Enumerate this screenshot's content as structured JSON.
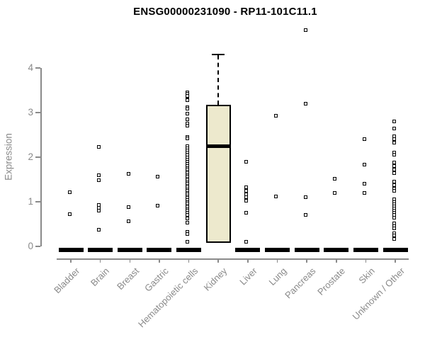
{
  "title": "ENSG00000231090 - RP11-101C11.1",
  "colors": {
    "box_fill": "#ede9cd",
    "axis": "#8a8a8a",
    "point": "#000000",
    "title_text": "#000000"
  },
  "chart_data": {
    "type": "boxplot",
    "title": "ENSG00000231090 - RP11-101C11.1",
    "xlabel": "",
    "ylabel": "Expression",
    "ylim": [
      0,
      4
    ],
    "yticks": [
      "0",
      "1",
      "2",
      "3",
      "4"
    ],
    "grid": false,
    "legend": "none",
    "categories": [
      "Bladder",
      "Brain",
      "Breast",
      "Gastric",
      "Hematopoietic cells",
      "Kidney",
      "Liver",
      "Lung",
      "Pancreas",
      "Prostate",
      "Skin",
      "Unknown / Other"
    ],
    "note": "all categories except Kidney collapse to a thick black bar at 0 (median of mostly-zero samples); squares are individual non-zero samples",
    "series": [
      {
        "category": "Bladder",
        "zero_bar": true,
        "points": [
          1.22,
          0.72
        ]
      },
      {
        "category": "Brain",
        "zero_bar": true,
        "points": [
          2.23,
          1.6,
          1.48,
          0.93,
          0.87,
          0.8,
          0.37
        ]
      },
      {
        "category": "Breast",
        "zero_bar": true,
        "points": [
          1.62,
          0.88,
          0.56
        ]
      },
      {
        "category": "Gastric",
        "zero_bar": true,
        "points": [
          1.57,
          0.92
        ]
      },
      {
        "category": "Hematopoietic cells",
        "zero_bar": true,
        "points": [
          3.45,
          3.42,
          3.38,
          3.3,
          3.28,
          3.12,
          3.08,
          2.97,
          2.85,
          2.76,
          2.7,
          2.45,
          2.42,
          2.25,
          2.2,
          2.15,
          2.1,
          2.05,
          2.0,
          1.95,
          1.9,
          1.85,
          1.8,
          1.76,
          1.72,
          1.68,
          1.64,
          1.6,
          1.56,
          1.52,
          1.48,
          1.44,
          1.4,
          1.36,
          1.32,
          1.28,
          1.24,
          1.2,
          1.16,
          1.12,
          1.08,
          1.04,
          1.0,
          0.96,
          0.92,
          0.88,
          0.84,
          0.8,
          0.75,
          0.7,
          0.65,
          0.62,
          0.53,
          0.32,
          0.28,
          0.1
        ]
      },
      {
        "category": "Kidney",
        "zero_bar": false,
        "points": [],
        "box": {
          "q1": 0.08,
          "median": 2.24,
          "q3": 3.17,
          "whisker_high": 4.3
        }
      },
      {
        "category": "Liver",
        "zero_bar": true,
        "points": [
          1.9,
          1.33,
          1.25,
          1.17,
          1.1,
          1.02,
          0.76,
          0.1
        ]
      },
      {
        "category": "Lung",
        "zero_bar": true,
        "points": [
          2.93,
          1.12
        ]
      },
      {
        "category": "Pancreas",
        "zero_bar": true,
        "points": [
          4.85,
          3.2,
          1.1,
          0.7
        ]
      },
      {
        "category": "Prostate",
        "zero_bar": true,
        "points": [
          1.52,
          1.2
        ]
      },
      {
        "category": "Skin",
        "zero_bar": true,
        "points": [
          2.4,
          1.84,
          1.41,
          1.2
        ]
      },
      {
        "category": "Unknown / Other",
        "zero_bar": true,
        "points": [
          2.8,
          2.64,
          2.47,
          2.4,
          2.33,
          2.1,
          2.06,
          1.88,
          1.8,
          1.72,
          1.64,
          1.45,
          1.38,
          1.3,
          1.25,
          1.05,
          1.0,
          0.95,
          0.9,
          0.85,
          0.8,
          0.75,
          0.7,
          0.65,
          0.52,
          0.46,
          0.4,
          0.3,
          0.24,
          0.17
        ]
      }
    ]
  }
}
